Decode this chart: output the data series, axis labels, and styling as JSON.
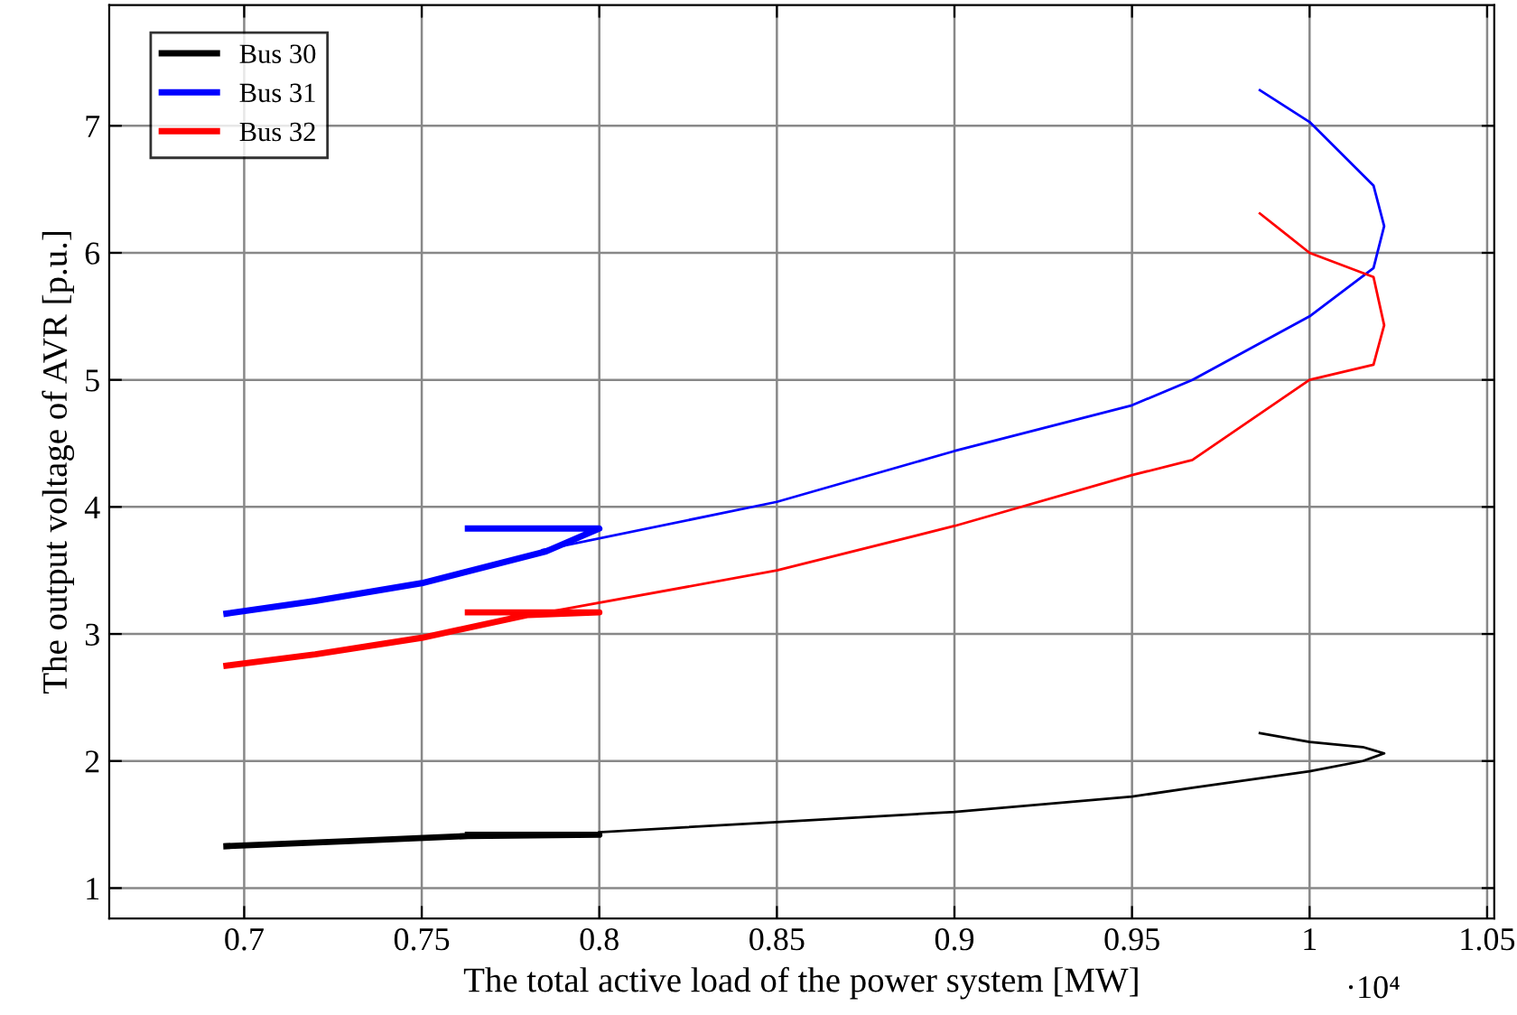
{
  "chart_data": {
    "type": "line",
    "xlabel": "The total active load of the power system [MW]",
    "ylabel": "The output voltage of AVR [p.u.]",
    "annotations": [
      "·10⁴"
    ],
    "xlim": [
      0.662,
      1.052
    ],
    "xticks": [
      0.7,
      0.75,
      0.8,
      0.85,
      0.9,
      0.95,
      1,
      1.05
    ],
    "ylim": [
      0.76,
      7.95
    ],
    "yticks": [
      1,
      2,
      3,
      4,
      5,
      6,
      7
    ],
    "grid": true,
    "legend": "top left",
    "marker": "none",
    "line_style": "solid",
    "series": [
      {
        "name": "Bus 30",
        "color": "#000000",
        "x": [
          0.695,
          0.73,
          0.763,
          0.8,
          0.763
        ],
        "values": [
          1.33,
          1.37,
          1.41,
          1.42,
          1.42
        ]
      },
      {
        "name": "Bus 31",
        "color": "#0000ff",
        "x": [
          0.695,
          0.72,
          0.75,
          0.785,
          0.8,
          0.763
        ],
        "values": [
          3.16,
          3.26,
          3.4,
          3.65,
          3.83,
          3.83
        ]
      },
      {
        "name": "Bus 32",
        "color": "#ff0000",
        "x": [
          0.695,
          0.72,
          0.75,
          0.78,
          0.8,
          0.763
        ],
        "values": [
          2.75,
          2.84,
          2.97,
          3.15,
          3.17,
          3.17
        ]
      },
      {
        "color": "#000000",
        "x": [
          0.8,
          0.85,
          0.9,
          0.95,
          0.967,
          1.0,
          1.015,
          1.021,
          1.015,
          1.0,
          0.986
        ],
        "values": [
          1.44,
          1.52,
          1.6,
          1.72,
          1.79,
          1.92,
          2.0,
          2.06,
          2.11,
          2.15,
          2.22
        ]
      },
      {
        "color": "#0000ff",
        "x": [
          0.784,
          0.85,
          0.9,
          0.95,
          0.967,
          1.0,
          1.018,
          1.021,
          1.018,
          1.0,
          0.986
        ],
        "values": [
          3.66,
          4.04,
          4.44,
          4.8,
          5.0,
          5.5,
          5.88,
          6.21,
          6.53,
          7.03,
          7.28
        ]
      },
      {
        "color": "#ff0000",
        "x": [
          0.785,
          0.85,
          0.9,
          0.95,
          0.967,
          1.0,
          1.018,
          1.021,
          1.018,
          1.0,
          0.986
        ],
        "values": [
          3.17,
          3.5,
          3.85,
          4.25,
          4.37,
          5.0,
          5.12,
          5.43,
          5.81,
          6.0,
          6.31
        ]
      }
    ]
  }
}
